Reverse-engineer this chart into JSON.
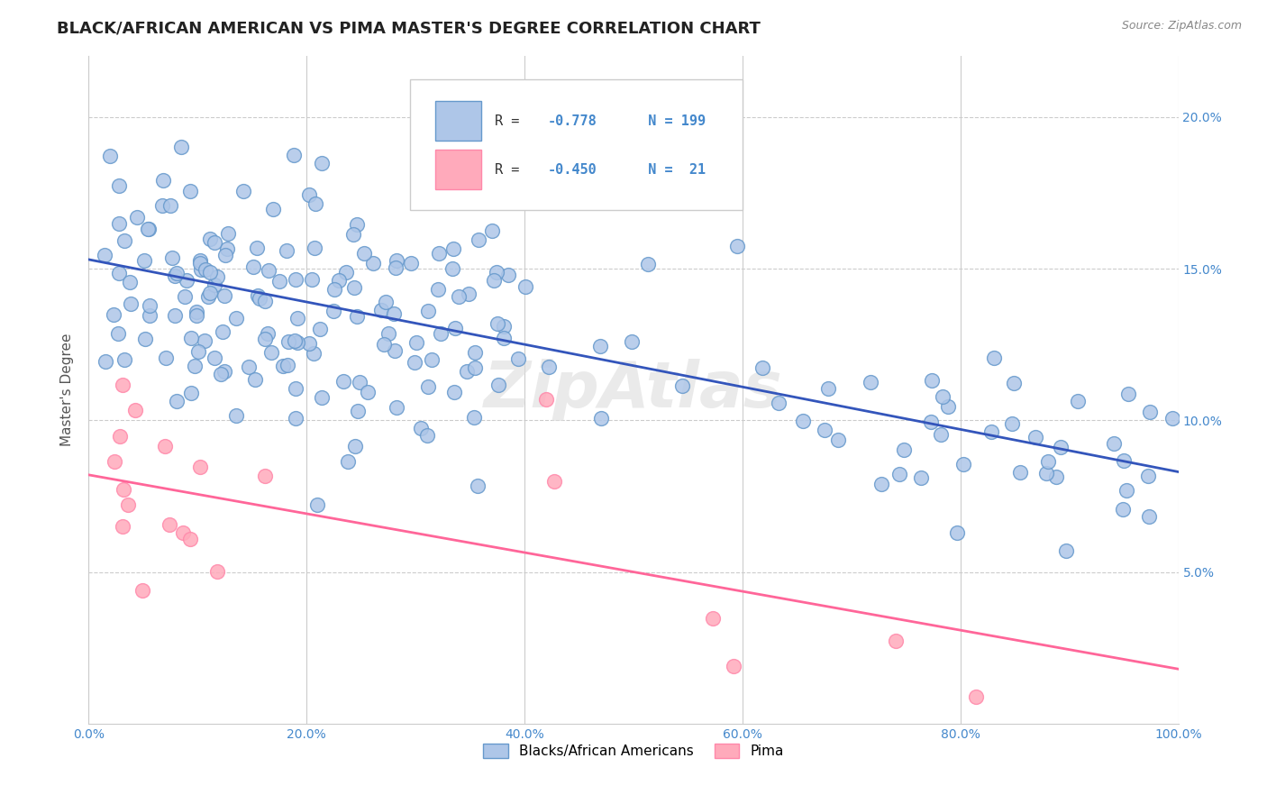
{
  "title": "BLACK/AFRICAN AMERICAN VS PIMA MASTER'S DEGREE CORRELATION CHART",
  "source": "Source: ZipAtlas.com",
  "ylabel": "Master's Degree",
  "legend_label_blue": "Blacks/African Americans",
  "legend_label_pink": "Pima",
  "legend_R_blue": "R = ",
  "legend_R_blue_val": "-0.778",
  "legend_N_blue": "N = 199",
  "legend_R_pink": "R = ",
  "legend_R_pink_val": "-0.450",
  "legend_N_pink": "N =  21",
  "blue_color": "#AEC6E8",
  "blue_edge_color": "#6699CC",
  "blue_line_color": "#3355BB",
  "pink_color": "#FFAABB",
  "pink_edge_color": "#FF88AA",
  "pink_line_color": "#FF6699",
  "tick_color": "#4488CC",
  "xlim": [
    0.0,
    1.0
  ],
  "ylim": [
    0.0,
    0.22
  ],
  "xticks": [
    0.0,
    0.2,
    0.4,
    0.6,
    0.8,
    1.0
  ],
  "yticks": [
    0.05,
    0.1,
    0.15,
    0.2
  ],
  "xtick_labels": [
    "0.0%",
    "20.0%",
    "40.0%",
    "60.0%",
    "80.0%",
    "100.0%"
  ],
  "ytick_labels_right": [
    "5.0%",
    "10.0%",
    "15.0%",
    "20.0%"
  ],
  "background_color": "#ffffff",
  "grid_color": "#cccccc",
  "blue_trendline_start_y": 0.153,
  "blue_trendline_end_y": 0.083,
  "pink_trendline_start_y": 0.082,
  "pink_trendline_end_y": 0.018
}
